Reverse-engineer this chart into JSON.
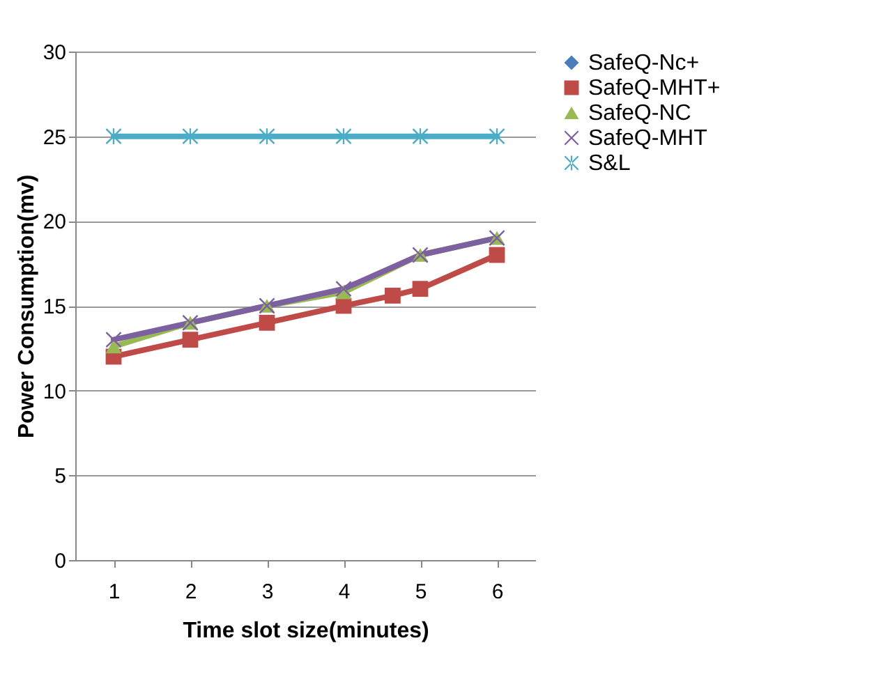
{
  "chart_data": {
    "type": "line",
    "xlabel": "Time slot size(minutes)",
    "ylabel": "Power Consumption(mv)",
    "x": [
      1,
      2,
      3,
      4,
      5,
      6
    ],
    "xlim": [
      0.5,
      6.5
    ],
    "xticks": [
      1,
      2,
      3,
      4,
      5,
      6
    ],
    "ylim": [
      0,
      30
    ],
    "yticks": [
      0,
      5,
      10,
      15,
      20,
      25,
      30
    ],
    "grid": "y",
    "legend": "right",
    "series": [
      {
        "name": "SafeQ-Nc+",
        "color": "#4a7ebb",
        "marker": "diamond",
        "values": [
          null,
          null,
          null,
          null,
          null,
          null
        ]
      },
      {
        "name": "SafeQ-MHT+",
        "color": "#be4b48",
        "marker": "square",
        "x": [
          1,
          2,
          3,
          4,
          4.64,
          5,
          6
        ],
        "values": [
          12,
          13,
          14,
          15,
          15.6,
          16,
          18
        ]
      },
      {
        "name": "SafeQ-NC",
        "color": "#98b954",
        "marker": "triangle",
        "values": [
          12.6,
          14,
          15,
          15.8,
          18,
          19
        ]
      },
      {
        "name": "SafeQ-MHT",
        "color": "#7d60a0",
        "marker": "cross",
        "values": [
          13,
          14,
          15,
          16,
          18,
          19
        ]
      },
      {
        "name": "S&L",
        "color": "#4bacc6",
        "marker": "star",
        "values": [
          25,
          25,
          25,
          25,
          25,
          25
        ]
      }
    ]
  }
}
